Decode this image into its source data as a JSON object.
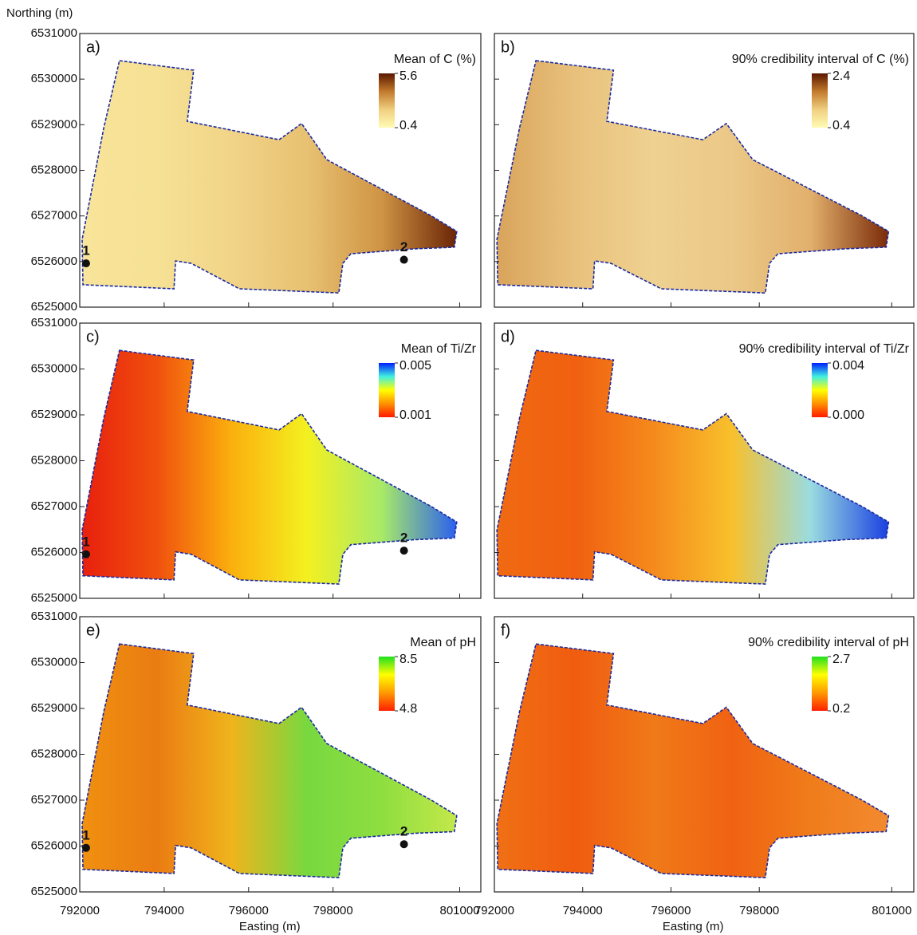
{
  "y_axis": {
    "label": "Northing (m)",
    "lim": [
      6525000,
      6531000
    ],
    "ticks": [
      6531000,
      6530000,
      6529000,
      6528000,
      6527000,
      6526000,
      6525000
    ]
  },
  "x_axis": {
    "label": "Easting (m)",
    "lim": [
      792000,
      801500
    ],
    "ticks": [
      792000,
      794000,
      796000,
      798000,
      801000
    ]
  },
  "panels": [
    {
      "label": "a)",
      "title": "Mean of C (%)",
      "max": 5.6,
      "min": 0.4,
      "colors": [
        "#fffbb4",
        "#f0cf80",
        "#c27a2c",
        "#5a1800"
      ],
      "map_colors": [
        "#f8e49a",
        "#f6e194",
        "#f1d488",
        "#e8c172",
        "#cf9444",
        "#6a2405"
      ],
      "points": [
        {
          "label": "1",
          "x": 792150,
          "y": 6525960
        },
        {
          "label": "2",
          "x": 799680,
          "y": 6526040
        }
      ]
    },
    {
      "label": "b)",
      "title": "90% credibility interval of C (%)",
      "max": 2.4,
      "min": 0.4,
      "colors": [
        "#fffbb4",
        "#f0cf80",
        "#c27a2c",
        "#5a1800"
      ],
      "map_colors": [
        "#d9a45c",
        "#e8c17c",
        "#efd191",
        "#ebc887",
        "#e2b06c",
        "#7a2a08"
      ]
    },
    {
      "label": "c)",
      "title": "Mean of Ti/Zr",
      "max": 0.005,
      "min": 0.001,
      "colors": [
        "#ff1a00",
        "#ff9000",
        "#ffff00",
        "#40f0e0",
        "#0020ff"
      ],
      "map_colors": [
        "#e8200e",
        "#f0500e",
        "#fbb00e",
        "#f4f020",
        "#a8ea68",
        "#2a60f0"
      ],
      "points": [
        {
          "label": "1",
          "x": 792150,
          "y": 6525960
        },
        {
          "label": "2",
          "x": 799680,
          "y": 6526040
        }
      ]
    },
    {
      "label": "d)",
      "title": "90% credibility interval of Ti/Zr",
      "max": 0.004,
      "min": {
        "value": 0,
        "label": "0.000"
      },
      "colors": [
        "#ff1a00",
        "#ff9000",
        "#ffff00",
        "#40f0e0",
        "#0020ff"
      ],
      "map_colors": [
        "#f06a12",
        "#f06010",
        "#f58a1c",
        "#f8c02c",
        "#9adce0",
        "#1a40e0"
      ]
    },
    {
      "label": "e)",
      "title": "Mean of pH",
      "max": 8.5,
      "min": 4.8,
      "colors": [
        "#ff2000",
        "#ff9a00",
        "#ffff00",
        "#20e020"
      ],
      "map_colors": [
        "#f09010",
        "#ea7c12",
        "#f0b41c",
        "#78d840",
        "#8ede40",
        "#c4e84a"
      ],
      "points": [
        {
          "label": "1",
          "x": 792150,
          "y": 6525960
        },
        {
          "label": "2",
          "x": 799680,
          "y": 6526040
        }
      ]
    },
    {
      "label": "f)",
      "title": "90% credibility interval of pH",
      "max": 2.7,
      "min": 0.2,
      "colors": [
        "#ff2000",
        "#ff9a00",
        "#ffff00",
        "#20e020"
      ],
      "map_colors": [
        "#f07014",
        "#f05c10",
        "#f07a18",
        "#f06212",
        "#f07c1a",
        "#f28a30"
      ]
    }
  ]
}
